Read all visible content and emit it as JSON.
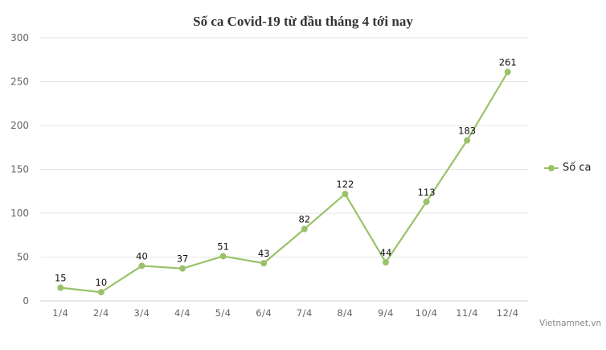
{
  "chart_data": {
    "type": "line",
    "title": "Số ca Covid-19 từ đầu tháng 4 tới nay",
    "xlabel": "",
    "ylabel": "",
    "categories": [
      "1/4",
      "2/4",
      "3/4",
      "4/4",
      "5/4",
      "6/4",
      "7/4",
      "8/4",
      "9/4",
      "10/4",
      "11/4",
      "12/4"
    ],
    "series": [
      {
        "name": "Số ca",
        "color": "#9bc26a",
        "values": [
          15,
          10,
          40,
          37,
          51,
          43,
          82,
          122,
          44,
          113,
          183,
          261
        ]
      }
    ],
    "ylim": [
      0,
      300
    ],
    "yticks": [
      0,
      50,
      100,
      150,
      200,
      250,
      300
    ],
    "grid": true,
    "data_labels": true,
    "legend_position": "right"
  },
  "title": "Số ca Covid-19 từ đầu tháng 4 tới nay",
  "legend": {
    "label": "Số ca",
    "icon": "line-marker-icon"
  },
  "credit": "Vietnamnet.vn",
  "colors": {
    "series": "#9bc26a",
    "grid": "#e6e6e6",
    "axis": "#cccccc"
  }
}
